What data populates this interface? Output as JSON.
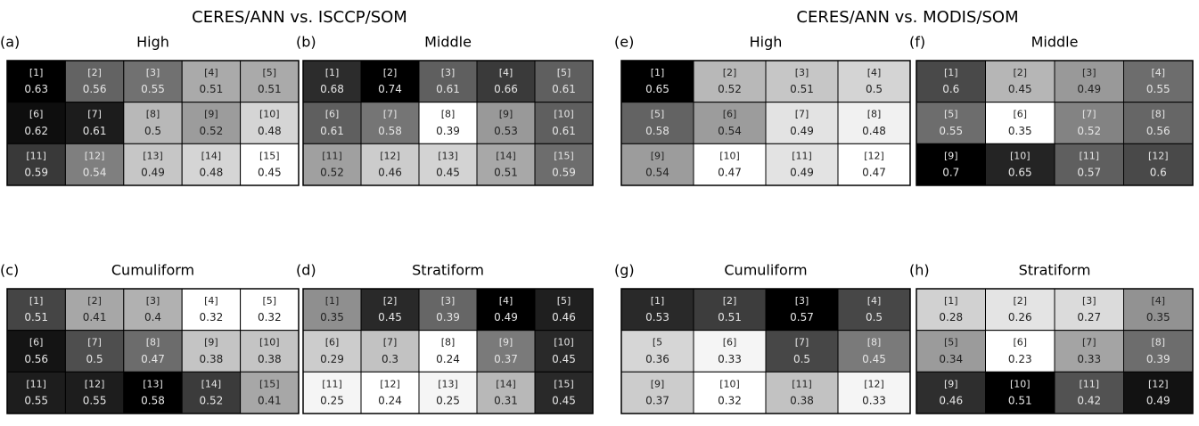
{
  "titles": [
    "CERES/ANN vs. ISCCP/SOM",
    "CERES/ANN vs. MODIS/SOM"
  ],
  "chart_data": [
    {
      "type": "heatmap",
      "panel": "(a)",
      "title": "High",
      "labels": [
        "[1]",
        "[2]",
        "[3]",
        "[4]",
        "[5]",
        "[6]",
        "[7]",
        "[8]",
        "[9]",
        "[10]",
        "[11]",
        "[12]",
        "[13]",
        "[14]",
        "[15]"
      ],
      "values": [
        0.63,
        0.56,
        0.55,
        0.51,
        0.51,
        0.62,
        0.61,
        0.5,
        0.52,
        0.48,
        0.59,
        0.54,
        0.49,
        0.48,
        0.45
      ]
    },
    {
      "type": "heatmap",
      "panel": "(b)",
      "title": "Middle",
      "labels": [
        "[1]",
        "[2]",
        "[3]",
        "[4]",
        "[5]",
        "[6]",
        "[7]",
        "[8]",
        "[9]",
        "[10]",
        "[11]",
        "[12]",
        "[13]",
        "[14]",
        "[15]"
      ],
      "values": [
        0.68,
        0.74,
        0.61,
        0.66,
        0.61,
        0.61,
        0.58,
        0.39,
        0.53,
        0.61,
        0.52,
        0.46,
        0.45,
        0.51,
        0.59
      ]
    },
    {
      "type": "heatmap",
      "panel": "(c)",
      "title": "Cumuliform",
      "labels": [
        "[1]",
        "[2]",
        "[3]",
        "[4]",
        "[5]",
        "[6]",
        "[7]",
        "[8]",
        "[9]",
        "[10]",
        "[11]",
        "[12]",
        "[13]",
        "[14]",
        "[15]"
      ],
      "values": [
        0.51,
        0.41,
        0.4,
        0.32,
        0.32,
        0.56,
        0.5,
        0.47,
        0.38,
        0.38,
        0.55,
        0.55,
        0.58,
        0.52,
        0.41
      ]
    },
    {
      "type": "heatmap",
      "panel": "(d)",
      "title": "Stratiform",
      "labels": [
        "[1]",
        "[2]",
        "[3]",
        "[4]",
        "[5]",
        "[6]",
        "[7]",
        "[8]",
        "[9]",
        "[10]",
        "[11]",
        "[12]",
        "[13]",
        "[14]",
        "[15]"
      ],
      "values": [
        0.35,
        0.45,
        0.39,
        0.49,
        0.46,
        0.29,
        0.3,
        0.24,
        0.37,
        0.45,
        0.25,
        0.24,
        0.25,
        0.31,
        0.45
      ]
    },
    {
      "type": "heatmap",
      "panel": "(e)",
      "title": "High",
      "labels": [
        "[1]",
        "[2]",
        "[3]",
        "[4]",
        "[5]",
        "[6]",
        "[7]",
        "[8]",
        "[9]",
        "[10]",
        "[11]",
        "[12]"
      ],
      "values": [
        0.65,
        0.52,
        0.51,
        0.5,
        0.58,
        0.54,
        0.49,
        0.48,
        0.54,
        0.47,
        0.49,
        0.47
      ]
    },
    {
      "type": "heatmap",
      "panel": "(f)",
      "title": "Middle",
      "labels": [
        "[1]",
        "[2]",
        "[3]",
        "[4]",
        "[5]",
        "[6]",
        "[7]",
        "[8]",
        "[9]",
        "[10]",
        "[11]",
        "[12]"
      ],
      "values": [
        0.6,
        0.45,
        0.49,
        0.55,
        0.55,
        0.35,
        0.52,
        0.56,
        0.7,
        0.65,
        0.57,
        0.6
      ]
    },
    {
      "type": "heatmap",
      "panel": "(g)",
      "title": "Cumuliform",
      "labels": [
        "[1]",
        "[2]",
        "[3]",
        "[4]",
        "[5",
        "[6]",
        "[7]",
        "[8]",
        "[9]",
        "[10]",
        "[11]",
        "[12]"
      ],
      "values": [
        0.53,
        0.51,
        0.57,
        0.5,
        0.36,
        0.33,
        0.5,
        0.45,
        0.37,
        0.32,
        0.38,
        0.33
      ]
    },
    {
      "type": "heatmap",
      "panel": "(h)",
      "title": "Stratiform",
      "labels": [
        "[1]",
        "[2]",
        "[3]",
        "[4]",
        "[5]",
        "[6]",
        "[7]",
        "[8]",
        "[9]",
        "[10]",
        "[11]",
        "[12]"
      ],
      "values": [
        0.28,
        0.26,
        0.27,
        0.35,
        0.34,
        0.23,
        0.33,
        0.39,
        0.46,
        0.51,
        0.42,
        0.49
      ]
    }
  ]
}
